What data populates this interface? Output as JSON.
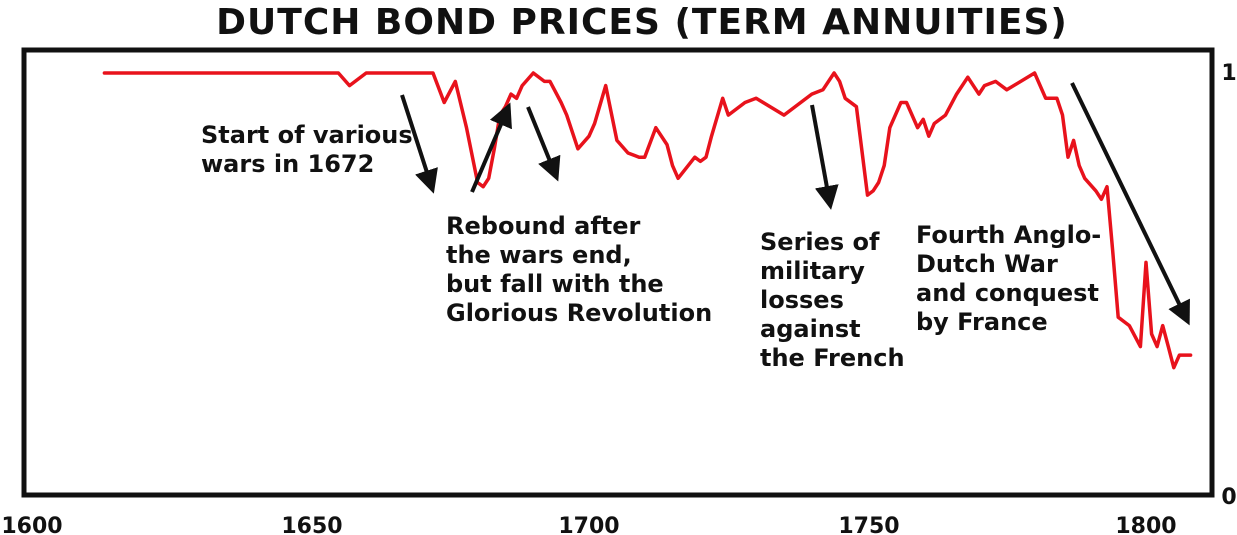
{
  "chart_data": {
    "type": "line",
    "title": "DUTCH BOND PRICES (TERM ANNUITIES)",
    "xlabel": "",
    "ylabel": "",
    "xlim": [
      1600,
      1810
    ],
    "ylim": [
      0,
      1
    ],
    "x_ticks": [
      "1600",
      "1650",
      "1700",
      "1750",
      "1800"
    ],
    "y_ticks": [
      "0",
      "1"
    ],
    "grid": false,
    "legend": "none",
    "colors": {
      "line": "#e8121c",
      "frame": "#111111",
      "text": "#111111",
      "arrow": "#111111"
    },
    "series": [
      {
        "x": [
          1613,
          1640,
          1655,
          1657,
          1660,
          1672,
          1674,
          1676,
          1678,
          1680,
          1681,
          1682,
          1683,
          1684,
          1685,
          1686,
          1687,
          1688,
          1690,
          1692,
          1693,
          1695,
          1696,
          1698,
          1700,
          1701,
          1703,
          1705,
          1707,
          1709,
          1710,
          1712,
          1714,
          1715,
          1716,
          1719,
          1720,
          1721,
          1722,
          1724,
          1725,
          1728,
          1730,
          1735,
          1740,
          1742,
          1744,
          1745,
          1746,
          1748,
          1750,
          1751,
          1752,
          1753,
          1754,
          1756,
          1757,
          1759,
          1760,
          1761,
          1762,
          1764,
          1766,
          1768,
          1770,
          1771,
          1773,
          1775,
          1780,
          1782,
          1784,
          1785,
          1786,
          1787,
          1788,
          1789,
          1791,
          1792,
          1793,
          1794,
          1795,
          1796,
          1797,
          1799,
          1800,
          1801,
          1802,
          1803,
          1804,
          1805,
          1806,
          1807,
          1808
        ],
        "y": [
          1.0,
          1.0,
          1.0,
          0.97,
          1.0,
          1.0,
          0.93,
          0.98,
          0.87,
          0.74,
          0.73,
          0.75,
          0.82,
          0.9,
          0.92,
          0.95,
          0.94,
          0.97,
          1.0,
          0.98,
          0.98,
          0.93,
          0.9,
          0.82,
          0.85,
          0.88,
          0.97,
          0.84,
          0.81,
          0.8,
          0.8,
          0.87,
          0.83,
          0.78,
          0.75,
          0.8,
          0.79,
          0.8,
          0.85,
          0.94,
          0.9,
          0.93,
          0.94,
          0.9,
          0.95,
          0.96,
          1.0,
          0.98,
          0.94,
          0.92,
          0.71,
          0.72,
          0.74,
          0.78,
          0.87,
          0.93,
          0.93,
          0.87,
          0.89,
          0.85,
          0.88,
          0.9,
          0.95,
          0.99,
          0.95,
          0.97,
          0.98,
          0.96,
          1.0,
          0.94,
          0.94,
          0.9,
          0.8,
          0.84,
          0.78,
          0.75,
          0.72,
          0.7,
          0.73,
          0.58,
          0.42,
          0.41,
          0.4,
          0.35,
          0.55,
          0.38,
          0.35,
          0.4,
          0.35,
          0.3,
          0.33,
          0.33,
          0.33
        ]
      }
    ],
    "annotations": [
      {
        "lines": [
          "Start of various",
          "wars in 1672"
        ]
      },
      {
        "lines": [
          "Rebound after",
          "the wars end,",
          "but fall with the",
          "Glorious Revolution"
        ]
      },
      {
        "lines": [
          "Series of",
          "military",
          "losses",
          "against",
          "the French"
        ]
      },
      {
        "lines": [
          "Fourth Anglo-",
          "Dutch War",
          "and conquest",
          "by France"
        ]
      }
    ]
  }
}
